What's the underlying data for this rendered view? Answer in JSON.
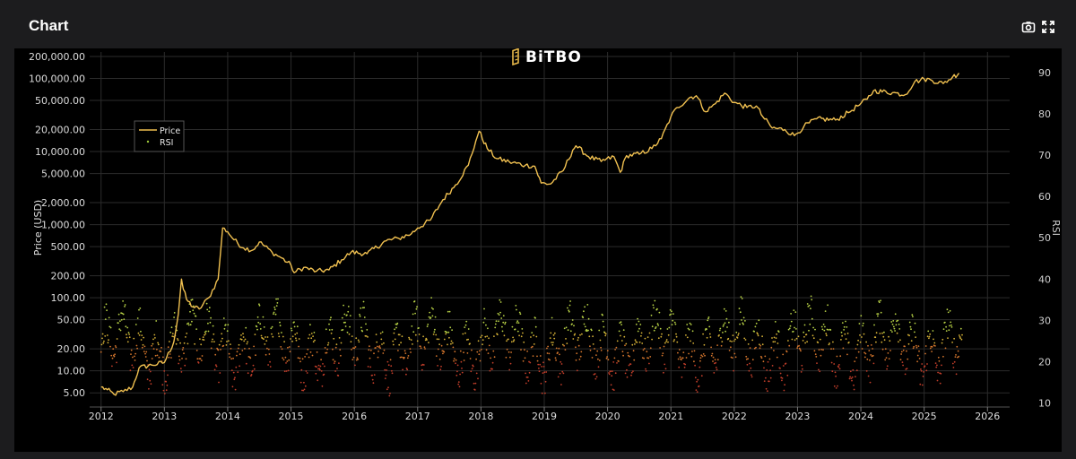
{
  "header": {
    "title": "Chart",
    "icons": [
      "camera-icon",
      "expand-icon"
    ]
  },
  "chart_data": {
    "type": "line",
    "brand": "BiTBO",
    "xlabel": "",
    "ylabel": "Price (USD)",
    "y2label": "RSI",
    "yscale": "log",
    "xlim": [
      2011.82,
      2026.35
    ],
    "ylim": [
      3.2,
      230000
    ],
    "y2lim": [
      9,
      95
    ],
    "y_ticks": [
      5,
      10,
      20,
      50,
      100,
      200,
      500,
      1000,
      2000,
      5000,
      10000,
      20000,
      50000,
      100000,
      200000
    ],
    "y_tick_labels": [
      "5.00",
      "10.00",
      "20.00",
      "50.00",
      "100.00",
      "200.00",
      "500.00",
      "1,000.00",
      "2,000.00",
      "5,000.00",
      "10,000.00",
      "20,000.00",
      "50,000.00",
      "100,000.00",
      "200,000.00"
    ],
    "y2_ticks": [
      10,
      20,
      30,
      40,
      50,
      60,
      70,
      80,
      90
    ],
    "y2_tick_labels": [
      "10",
      "20",
      "30",
      "40",
      "50",
      "60",
      "70",
      "80",
      "90"
    ],
    "x_ticks": [
      2012,
      2013,
      2014,
      2015,
      2016,
      2017,
      2018,
      2019,
      2020,
      2021,
      2022,
      2023,
      2024,
      2025,
      2026
    ],
    "x_tick_labels": [
      "2012",
      "2013",
      "2014",
      "2015",
      "2016",
      "2017",
      "2018",
      "2019",
      "2020",
      "2021",
      "2022",
      "2023",
      "2024",
      "2025",
      "2026"
    ],
    "grid": true,
    "legend_position": "top-left",
    "series": [
      {
        "name": "Price",
        "type": "line",
        "color": "#f0c050",
        "x": [
          2012.0,
          2012.1,
          2012.2,
          2012.35,
          2012.5,
          2012.6,
          2012.8,
          2013.0,
          2013.15,
          2013.22,
          2013.27,
          2013.3,
          2013.35,
          2013.45,
          2013.55,
          2013.7,
          2013.85,
          2013.92,
          2014.0,
          2014.1,
          2014.25,
          2014.4,
          2014.5,
          2014.7,
          2014.85,
          2015.0,
          2015.05,
          2015.2,
          2015.4,
          2015.6,
          2015.8,
          2015.95,
          2016.2,
          2016.5,
          2016.7,
          2016.9,
          2017.0,
          2017.2,
          2017.4,
          2017.6,
          2017.8,
          2017.92,
          2017.97,
          2018.1,
          2018.25,
          2018.45,
          2018.7,
          2018.85,
          2018.95,
          2019.1,
          2019.3,
          2019.45,
          2019.5,
          2019.7,
          2019.9,
          2020.1,
          2020.2,
          2020.3,
          2020.5,
          2020.7,
          2020.85,
          2021.0,
          2021.1,
          2021.3,
          2021.4,
          2021.55,
          2021.7,
          2021.85,
          2022.0,
          2022.2,
          2022.35,
          2022.45,
          2022.6,
          2022.8,
          2022.95,
          2023.1,
          2023.3,
          2023.6,
          2023.8,
          2023.95,
          2024.1,
          2024.2,
          2024.5,
          2024.7,
          2024.85,
          2025.0,
          2025.1,
          2025.3,
          2025.45,
          2025.55
        ],
        "y": [
          6,
          5.5,
          4.8,
          5.2,
          6,
          11,
          12,
          13,
          25,
          60,
          180,
          130,
          95,
          75,
          70,
          100,
          180,
          900,
          800,
          620,
          480,
          450,
          580,
          420,
          350,
          280,
          220,
          260,
          230,
          240,
          330,
          420,
          400,
          600,
          650,
          750,
          900,
          1150,
          2200,
          3500,
          6500,
          14000,
          19000,
          11000,
          8000,
          7200,
          6500,
          6300,
          3700,
          3600,
          5500,
          10500,
          12000,
          8500,
          7300,
          8500,
          5200,
          8800,
          9200,
          11000,
          15000,
          30000,
          40000,
          55000,
          58000,
          35000,
          45000,
          63000,
          47000,
          40000,
          42000,
          30000,
          21000,
          20000,
          16500,
          22000,
          28000,
          27000,
          34000,
          42000,
          52000,
          68000,
          64000,
          60000,
          90000,
          98000,
          96000,
          85000,
          105000,
          118000
        ]
      },
      {
        "name": "RSI",
        "type": "scatter",
        "axis": "y2",
        "color": "#9cc63a",
        "x_start": 2012.0,
        "x_end": 2025.6,
        "center": 24,
        "count": 1500
      }
    ]
  }
}
